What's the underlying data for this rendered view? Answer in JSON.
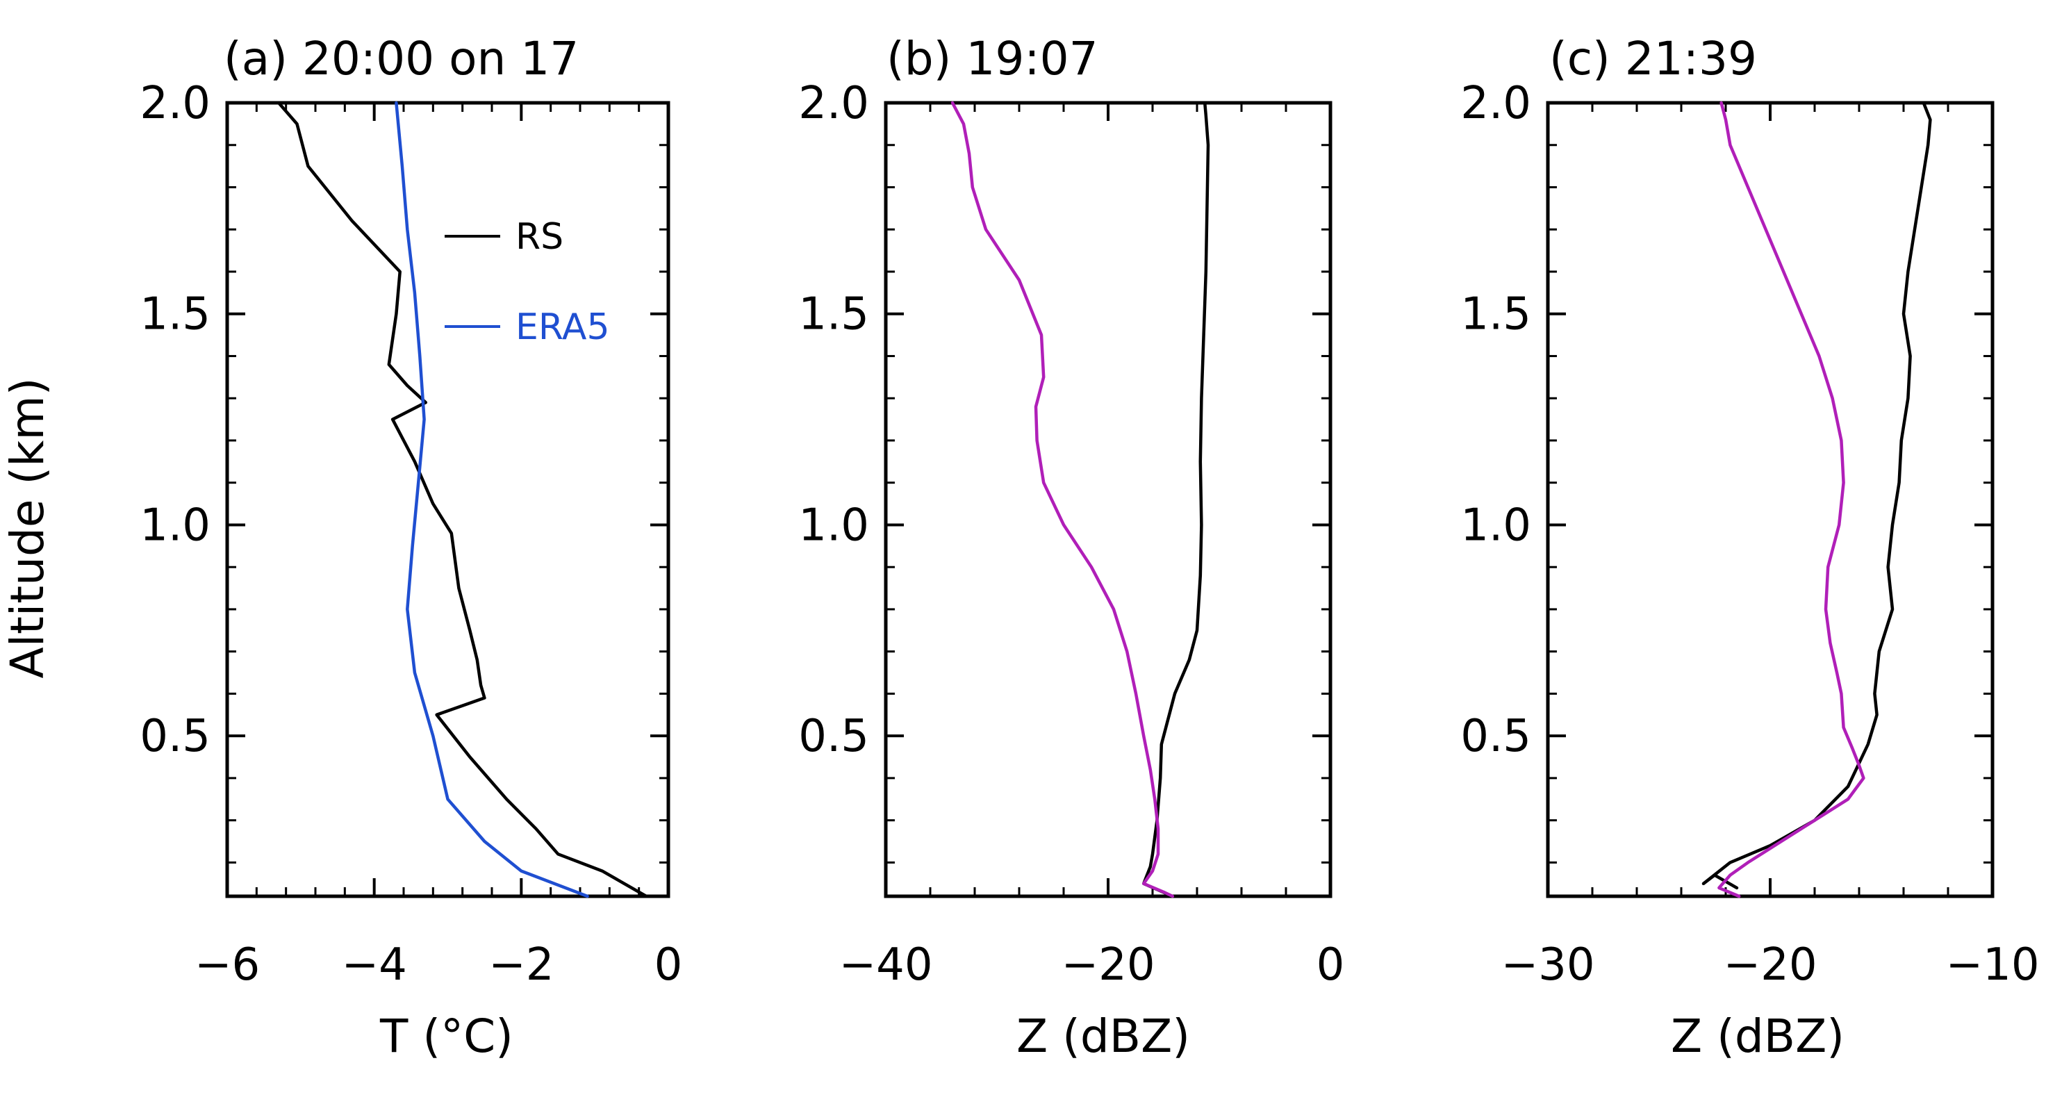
{
  "figure": {
    "ylabel": "Altitude (km)",
    "yticks": [
      "0.5",
      "1.0",
      "1.5",
      "2.0"
    ],
    "yticks_values": [
      0.5,
      1.0,
      1.5,
      2.0
    ]
  },
  "chart_data": [
    {
      "type": "line",
      "title": "(a) 20:00 on 17",
      "xlabel": "T (°C)",
      "ylabel": "Altitude (km)",
      "xlim": [
        -6,
        0
      ],
      "ylim": [
        0.12,
        2.0
      ],
      "xticks": [
        -6,
        -4,
        -2,
        0
      ],
      "xtick_labels": [
        "−6",
        "−4",
        "−2",
        "0"
      ],
      "legend_position": "upper-right",
      "series": [
        {
          "name": "RS",
          "color": "#000000",
          "x": [
            -5.3,
            -5.05,
            -4.9,
            -4.3,
            -3.65,
            -3.7,
            -3.8,
            -3.55,
            -3.3,
            -3.75,
            -3.45,
            -3.2,
            -2.95,
            -2.85,
            -2.7,
            -2.6,
            -2.55,
            -2.5,
            -3.15,
            -2.7,
            -2.2,
            -1.8,
            -1.5,
            -0.9,
            -0.3
          ],
          "y": [
            2.0,
            1.95,
            1.85,
            1.72,
            1.6,
            1.5,
            1.38,
            1.33,
            1.29,
            1.25,
            1.15,
            1.05,
            0.98,
            0.85,
            0.75,
            0.68,
            0.62,
            0.59,
            0.55,
            0.45,
            0.35,
            0.28,
            0.22,
            0.18,
            0.12
          ]
        },
        {
          "name": "ERA5",
          "color": "#1f4fd1",
          "x": [
            -3.7,
            -3.62,
            -3.55,
            -3.45,
            -3.38,
            -3.32,
            -3.4,
            -3.48,
            -3.55,
            -3.45,
            -3.2,
            -3.0,
            -2.5,
            -2.0,
            -1.1
          ],
          "y": [
            2.0,
            1.85,
            1.7,
            1.55,
            1.4,
            1.25,
            1.1,
            0.95,
            0.8,
            0.65,
            0.5,
            0.35,
            0.25,
            0.18,
            0.12
          ]
        }
      ],
      "legend": [
        {
          "name": "RS",
          "color": "#000000"
        },
        {
          "name": "ERA5",
          "color": "#1f4fd1"
        }
      ]
    },
    {
      "type": "line",
      "title": "(b) 19:07",
      "xlabel": "Z (dBZ)",
      "ylabel": "",
      "xlim": [
        -40,
        0
      ],
      "ylim": [
        0.12,
        2.0
      ],
      "xticks": [
        -40,
        -20,
        0
      ],
      "xtick_labels": [
        "−40",
        "−20",
        "0"
      ],
      "series": [
        {
          "name": "",
          "color": "#000000",
          "x": [
            -11.3,
            -11.2,
            -11.0,
            -11.1,
            -11.2,
            -11.4,
            -11.6,
            -11.7,
            -11.6,
            -11.7,
            -12.0,
            -12.7,
            -14.0,
            -14.8,
            -15.2,
            -15.3,
            -15.6,
            -16.0,
            -16.2,
            -16.5,
            -16.8,
            -14.2
          ],
          "y": [
            2.0,
            1.97,
            1.9,
            1.75,
            1.6,
            1.45,
            1.3,
            1.15,
            1.0,
            0.88,
            0.75,
            0.68,
            0.6,
            0.52,
            0.48,
            0.4,
            0.3,
            0.22,
            0.19,
            0.17,
            0.15,
            0.12
          ]
        },
        {
          "name": "",
          "color": "#b01fb8",
          "x": [
            -34.0,
            -33.0,
            -32.5,
            -32.2,
            -31.0,
            -28.0,
            -26.0,
            -25.8,
            -26.5,
            -26.4,
            -25.8,
            -24.0,
            -21.5,
            -19.5,
            -18.3,
            -17.5,
            -16.8,
            -16.2,
            -15.8,
            -15.5,
            -15.5,
            -16.0,
            -16.8,
            -15.0,
            -14.2
          ],
          "y": [
            2.0,
            1.95,
            1.88,
            1.8,
            1.7,
            1.58,
            1.45,
            1.35,
            1.28,
            1.2,
            1.1,
            1.0,
            0.9,
            0.8,
            0.7,
            0.6,
            0.5,
            0.42,
            0.35,
            0.28,
            0.22,
            0.18,
            0.15,
            0.13,
            0.12
          ]
        }
      ]
    },
    {
      "type": "line",
      "title": "(c) 21:39",
      "xlabel": "Z (dBZ)",
      "ylabel": "",
      "xlim": [
        -30,
        -10
      ],
      "ylim": [
        0.12,
        2.0
      ],
      "xticks": [
        -30,
        -20,
        -10
      ],
      "xtick_labels": [
        "−30",
        "−20",
        "−10"
      ],
      "series": [
        {
          "name": "",
          "color": "#000000",
          "x": [
            -13.1,
            -12.8,
            -12.9,
            -13.2,
            -13.5,
            -13.8,
            -14.0,
            -13.7,
            -13.8,
            -14.1,
            -14.2,
            -14.5,
            -14.7,
            -14.5,
            -15.1,
            -15.3,
            -15.2,
            -15.6,
            -16.5,
            -18.0,
            -20.0,
            -21.8,
            -23.0,
            -22.5,
            -21.5
          ],
          "y": [
            2.0,
            1.96,
            1.9,
            1.8,
            1.7,
            1.6,
            1.5,
            1.4,
            1.3,
            1.2,
            1.1,
            1.0,
            0.9,
            0.8,
            0.7,
            0.6,
            0.55,
            0.48,
            0.38,
            0.3,
            0.24,
            0.2,
            0.15,
            0.17,
            0.14
          ]
        },
        {
          "name": "",
          "color": "#b01fb8",
          "x": [
            -22.2,
            -22.0,
            -21.8,
            -21.0,
            -20.2,
            -19.4,
            -18.6,
            -17.8,
            -17.2,
            -16.8,
            -16.7,
            -16.9,
            -17.4,
            -17.5,
            -17.3,
            -17.0,
            -16.8,
            -16.7,
            -16.3,
            -16.0,
            -15.8,
            -16.5,
            -18.0,
            -19.5,
            -21.0,
            -21.8,
            -22.3,
            -21.4
          ],
          "y": [
            2.0,
            1.96,
            1.9,
            1.8,
            1.7,
            1.6,
            1.5,
            1.4,
            1.3,
            1.2,
            1.1,
            1.0,
            0.9,
            0.8,
            0.72,
            0.65,
            0.6,
            0.52,
            0.47,
            0.43,
            0.4,
            0.35,
            0.3,
            0.25,
            0.2,
            0.17,
            0.14,
            0.12
          ]
        }
      ]
    }
  ]
}
